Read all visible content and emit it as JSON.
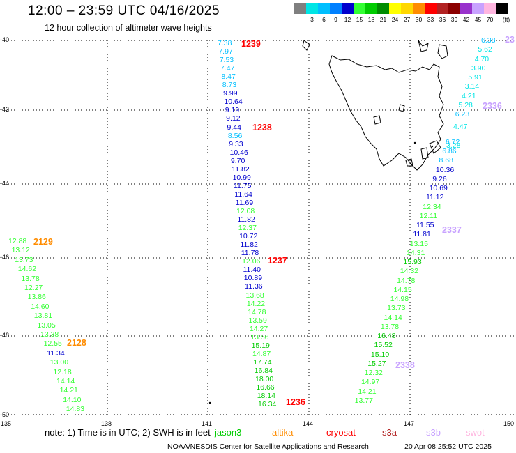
{
  "header": {
    "title": "12:00 – 23:59 UTC 04/16/2025",
    "subtitle": "12 hour collection of altimeter wave heights"
  },
  "scale": {
    "unit": "(ft)",
    "swatches": [
      {
        "color": "#7f7f7f",
        "label": ""
      },
      {
        "color": "#00e5e5",
        "label": "3"
      },
      {
        "color": "#00bfff",
        "label": "6"
      },
      {
        "color": "#0080ff",
        "label": "9"
      },
      {
        "color": "#0000cd",
        "label": "12"
      },
      {
        "color": "#33ff33",
        "label": "15"
      },
      {
        "color": "#00cc00",
        "label": "18"
      },
      {
        "color": "#008c00",
        "label": "21"
      },
      {
        "color": "#ffff00",
        "label": "24"
      },
      {
        "color": "#ffd700",
        "label": "27"
      },
      {
        "color": "#ff8c00",
        "label": "30"
      },
      {
        "color": "#ff0000",
        "label": "33"
      },
      {
        "color": "#b22222",
        "label": "36"
      },
      {
        "color": "#8b0000",
        "label": "39"
      },
      {
        "color": "#9932cc",
        "label": "42"
      },
      {
        "color": "#c8a2ff",
        "label": "45"
      },
      {
        "color": "#ffb6e0",
        "label": "70"
      },
      {
        "color": "#000000",
        "label": ""
      }
    ]
  },
  "map": {
    "lat_ticks": [
      "-40",
      "-42",
      "-44",
      "-46",
      "-48",
      "-50"
    ],
    "lon_ticks": [
      "135",
      "138",
      "141",
      "144",
      "147",
      "150"
    ]
  },
  "tracks": [
    {
      "time": "1239",
      "time_color": "#ff0000"
    },
    {
      "time": "1238",
      "time_color": "#ff0000"
    },
    {
      "time": "1237",
      "time_color": "#ff0000"
    },
    {
      "time": "1236",
      "time_color": "#ff0000"
    },
    {
      "time": "2129",
      "time_color": "#ff8c00"
    },
    {
      "time": "2128",
      "time_color": "#ff8c00"
    },
    {
      "time": "2336",
      "time_color": "#c8a2ff"
    },
    {
      "time": "2337",
      "time_color": "#c8a2ff"
    },
    {
      "time": "2338",
      "time_color": "#c8a2ff"
    },
    {
      "time": "23",
      "time_color": "#c8a2ff"
    }
  ],
  "values": {
    "jason_track": [
      {
        "v": "7.38",
        "c": "#00bfff"
      },
      {
        "v": "7.97",
        "c": "#00bfff"
      },
      {
        "v": "7.53",
        "c": "#00bfff"
      },
      {
        "v": "7.47",
        "c": "#00bfff"
      },
      {
        "v": "8.47",
        "c": "#00bfff"
      },
      {
        "v": "8.73",
        "c": "#00bfff"
      },
      {
        "v": "9.99",
        "c": "#0000cd"
      },
      {
        "v": "10.64",
        "c": "#0000cd"
      },
      {
        "v": "9.19",
        "c": "#0000cd"
      },
      {
        "v": "9.12",
        "c": "#0000cd"
      },
      {
        "v": "9.44",
        "c": "#0000cd"
      },
      {
        "v": "8.56",
        "c": "#00bfff"
      },
      {
        "v": "9.33",
        "c": "#0000cd"
      },
      {
        "v": "10.46",
        "c": "#0000cd"
      },
      {
        "v": "9.70",
        "c": "#0000cd"
      },
      {
        "v": "11.82",
        "c": "#0000cd"
      },
      {
        "v": "10.99",
        "c": "#0000cd"
      },
      {
        "v": "11.75",
        "c": "#0000cd"
      },
      {
        "v": "11.64",
        "c": "#0000cd"
      },
      {
        "v": "11.69",
        "c": "#0000cd"
      },
      {
        "v": "12.08",
        "c": "#33ff33"
      },
      {
        "v": "11.82",
        "c": "#0000cd"
      },
      {
        "v": "12.37",
        "c": "#33ff33"
      },
      {
        "v": "10.72",
        "c": "#0000cd"
      },
      {
        "v": "11.82",
        "c": "#0000cd"
      },
      {
        "v": "11.78",
        "c": "#0000cd"
      },
      {
        "v": "12.06",
        "c": "#33ff33"
      },
      {
        "v": "11.40",
        "c": "#0000cd"
      },
      {
        "v": "10.89",
        "c": "#0000cd"
      },
      {
        "v": "11.36",
        "c": "#0000cd"
      },
      {
        "v": "13.68",
        "c": "#33ff33"
      },
      {
        "v": "14.22",
        "c": "#33ff33"
      },
      {
        "v": "14.78",
        "c": "#33ff33"
      },
      {
        "v": "13.59",
        "c": "#33ff33"
      },
      {
        "v": "14.27",
        "c": "#33ff33"
      },
      {
        "v": "13.56",
        "c": "#33ff33"
      },
      {
        "v": "15.19",
        "c": "#00cc00"
      },
      {
        "v": "14.87",
        "c": "#33ff33"
      },
      {
        "v": "17.74",
        "c": "#00cc00"
      },
      {
        "v": "16.84",
        "c": "#00cc00"
      },
      {
        "v": "18.00",
        "c": "#00cc00"
      },
      {
        "v": "16.66",
        "c": "#00cc00"
      },
      {
        "v": "18.14",
        "c": "#00cc00"
      },
      {
        "v": "16.34",
        "c": "#00cc00"
      }
    ],
    "altika_track": [
      {
        "v": "12.88",
        "c": "#33ff33"
      },
      {
        "v": "13.12",
        "c": "#33ff33"
      },
      {
        "v": "13.73",
        "c": "#33ff33"
      },
      {
        "v": "14.62",
        "c": "#33ff33"
      },
      {
        "v": "13.78",
        "c": "#33ff33"
      },
      {
        "v": "12.27",
        "c": "#33ff33"
      },
      {
        "v": "13.86",
        "c": "#33ff33"
      },
      {
        "v": "14.60",
        "c": "#33ff33"
      },
      {
        "v": "13.81",
        "c": "#33ff33"
      },
      {
        "v": "13.05",
        "c": "#33ff33"
      },
      {
        "v": "13.38",
        "c": "#33ff33"
      },
      {
        "v": "12.55",
        "c": "#33ff33"
      },
      {
        "v": "11.34",
        "c": "#0000cd"
      },
      {
        "v": "13.00",
        "c": "#33ff33"
      },
      {
        "v": "12.18",
        "c": "#33ff33"
      },
      {
        "v": "14.14",
        "c": "#33ff33"
      },
      {
        "v": "14.21",
        "c": "#33ff33"
      },
      {
        "v": "14.10",
        "c": "#33ff33"
      },
      {
        "v": "14.83",
        "c": "#33ff33"
      }
    ],
    "s3b_track": [
      {
        "v": "6.38",
        "c": "#00bfff"
      },
      {
        "v": "5.62",
        "c": "#00e5e5"
      },
      {
        "v": "4.70",
        "c": "#00e5e5"
      },
      {
        "v": "3.90",
        "c": "#00e5e5"
      },
      {
        "v": "5.91",
        "c": "#00e5e5"
      },
      {
        "v": "3.14",
        "c": "#00e5e5"
      },
      {
        "v": "4.21",
        "c": "#00e5e5"
      },
      {
        "v": "5.28",
        "c": "#00e5e5"
      },
      {
        "v": "6.23",
        "c": "#00bfff"
      },
      {
        "v": "4.47",
        "c": "#00e5e5"
      },
      {
        "v": "3.28",
        "c": "#00e5e5"
      },
      {
        "v": "6.72",
        "c": "#00bfff"
      },
      {
        "v": "6.86",
        "c": "#00bfff"
      },
      {
        "v": "8.68",
        "c": "#00bfff"
      },
      {
        "v": "10.36",
        "c": "#0000cd"
      },
      {
        "v": "9.26",
        "c": "#0000cd"
      },
      {
        "v": "10.69",
        "c": "#0000cd"
      },
      {
        "v": "11.12",
        "c": "#0000cd"
      },
      {
        "v": "12.34",
        "c": "#33ff33"
      },
      {
        "v": "12.11",
        "c": "#33ff33"
      },
      {
        "v": "11.55",
        "c": "#0000cd"
      },
      {
        "v": "11.81",
        "c": "#0000cd"
      },
      {
        "v": "13.15",
        "c": "#33ff33"
      },
      {
        "v": "14.31",
        "c": "#33ff33"
      },
      {
        "v": "15.93",
        "c": "#00cc00"
      },
      {
        "v": "14.32",
        "c": "#33ff33"
      },
      {
        "v": "14.78",
        "c": "#33ff33"
      },
      {
        "v": "14.15",
        "c": "#33ff33"
      },
      {
        "v": "14.98",
        "c": "#33ff33"
      },
      {
        "v": "13.73",
        "c": "#33ff33"
      },
      {
        "v": "14.14",
        "c": "#33ff33"
      },
      {
        "v": "13.78",
        "c": "#33ff33"
      },
      {
        "v": "16.48",
        "c": "#00cc00"
      },
      {
        "v": "15.52",
        "c": "#00cc00"
      },
      {
        "v": "15.10",
        "c": "#00cc00"
      },
      {
        "v": "15.27",
        "c": "#00cc00"
      },
      {
        "v": "12.32",
        "c": "#33ff33"
      },
      {
        "v": "14.97",
        "c": "#33ff33"
      },
      {
        "v": "14.21",
        "c": "#33ff33"
      },
      {
        "v": "13.77",
        "c": "#33ff33"
      }
    ]
  },
  "footer": {
    "note": "note:  1) Time is in UTC; 2) SWH is in feet",
    "legend": [
      {
        "label": "jason3",
        "color": "#00cc00"
      },
      {
        "label": "altika",
        "color": "#ff8c00"
      },
      {
        "label": "cryosat",
        "color": "#ff0000"
      },
      {
        "label": "s3a",
        "color": "#b22222"
      },
      {
        "label": "s3b",
        "color": "#c8a2ff"
      },
      {
        "label": "swot",
        "color": "#ffb6e0"
      }
    ],
    "credit": "NOAA/NESDIS Center for Satellite Applications and Research",
    "stamp": "20 Apr 08:25:52 UTC 2025"
  }
}
